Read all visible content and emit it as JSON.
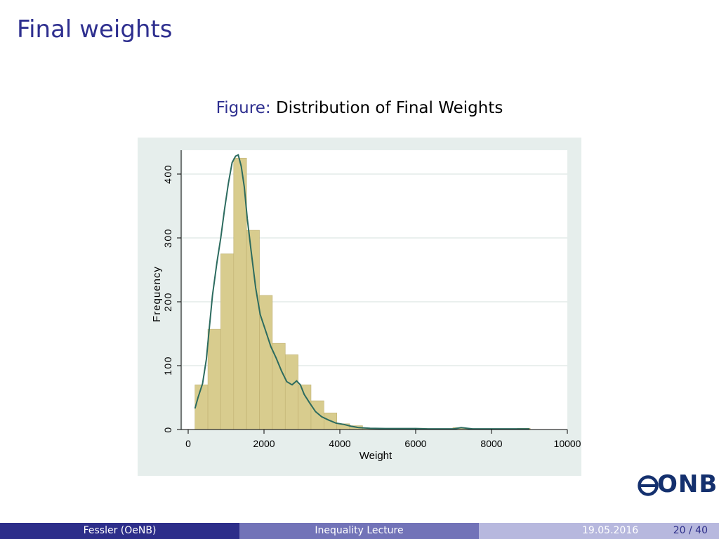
{
  "slide": {
    "title": "Final weights",
    "caption_prefix": "Figure:",
    "caption_text": "Distribution of Final Weights"
  },
  "footer": {
    "author": "Fessler  (OeNB)",
    "course": "Inequality Lecture",
    "date": "19.05.2016",
    "page": "20 / 40"
  },
  "logo": {
    "text": "ONB",
    "color": "#14306e"
  },
  "colors": {
    "bar_fill": "#d8cc8e",
    "bar_stroke": "#bfb071",
    "kde_line": "#2c6b5f",
    "chart_background": "#e6eeec",
    "plot_background": "#ffffff",
    "gridline": "#e3ebe9",
    "accent": "#2e2f8f"
  },
  "chart_data": {
    "type": "bar",
    "title": "",
    "xlabel": "Weight",
    "ylabel": "Frequency",
    "xlim": [
      0,
      10000
    ],
    "ylim": [
      0,
      450
    ],
    "xticks": [
      0,
      2000,
      4000,
      6000,
      8000,
      10000
    ],
    "yticks": [
      0,
      100,
      200,
      300,
      400
    ],
    "grid": true,
    "bin_width": 340,
    "bins": [
      {
        "x0": 180,
        "x1": 520,
        "count": 70
      },
      {
        "x0": 520,
        "x1": 860,
        "count": 157
      },
      {
        "x0": 860,
        "x1": 1200,
        "count": 275
      },
      {
        "x0": 1200,
        "x1": 1540,
        "count": 425
      },
      {
        "x0": 1540,
        "x1": 1880,
        "count": 312
      },
      {
        "x0": 1880,
        "x1": 2220,
        "count": 210
      },
      {
        "x0": 2220,
        "x1": 2560,
        "count": 135
      },
      {
        "x0": 2560,
        "x1": 2900,
        "count": 117
      },
      {
        "x0": 2900,
        "x1": 3240,
        "count": 70
      },
      {
        "x0": 3240,
        "x1": 3580,
        "count": 45
      },
      {
        "x0": 3580,
        "x1": 3920,
        "count": 26
      },
      {
        "x0": 3920,
        "x1": 4260,
        "count": 9
      },
      {
        "x0": 4260,
        "x1": 4600,
        "count": 6
      },
      {
        "x0": 4600,
        "x1": 4940,
        "count": 2
      },
      {
        "x0": 4940,
        "x1": 5280,
        "count": 1
      },
      {
        "x0": 5280,
        "x1": 5620,
        "count": 1
      },
      {
        "x0": 5620,
        "x1": 5960,
        "count": 1
      },
      {
        "x0": 5960,
        "x1": 6300,
        "count": 2
      },
      {
        "x0": 6300,
        "x1": 6640,
        "count": 1
      },
      {
        "x0": 6640,
        "x1": 6980,
        "count": 1
      },
      {
        "x0": 6980,
        "x1": 7320,
        "count": 3
      },
      {
        "x0": 7320,
        "x1": 7660,
        "count": 1
      },
      {
        "x0": 7660,
        "x1": 8000,
        "count": 1
      },
      {
        "x0": 8000,
        "x1": 8340,
        "count": 1
      },
      {
        "x0": 8340,
        "x1": 8680,
        "count": 1
      },
      {
        "x0": 8680,
        "x1": 9020,
        "count": 2
      }
    ],
    "density_curve": {
      "x": [
        180,
        260,
        380,
        480,
        560,
        640,
        760,
        860,
        960,
        1060,
        1160,
        1250,
        1320,
        1400,
        1480,
        1560,
        1660,
        1780,
        1900,
        2040,
        2180,
        2320,
        2460,
        2600,
        2740,
        2860,
        2960,
        3060,
        3200,
        3360,
        3520,
        3700,
        3900,
        4100,
        4300,
        4500,
        4800,
        5200,
        6000,
        6300,
        7000,
        7200,
        7500,
        8000,
        8500,
        9000
      ],
      "y": [
        33,
        50,
        72,
        110,
        160,
        210,
        262,
        300,
        345,
        385,
        418,
        428,
        430,
        412,
        380,
        330,
        280,
        222,
        180,
        155,
        130,
        112,
        92,
        75,
        70,
        76,
        70,
        55,
        42,
        28,
        20,
        15,
        10,
        8,
        5,
        3,
        2,
        1.5,
        1.5,
        1,
        1,
        3,
        1,
        1,
        1,
        1
      ]
    }
  }
}
